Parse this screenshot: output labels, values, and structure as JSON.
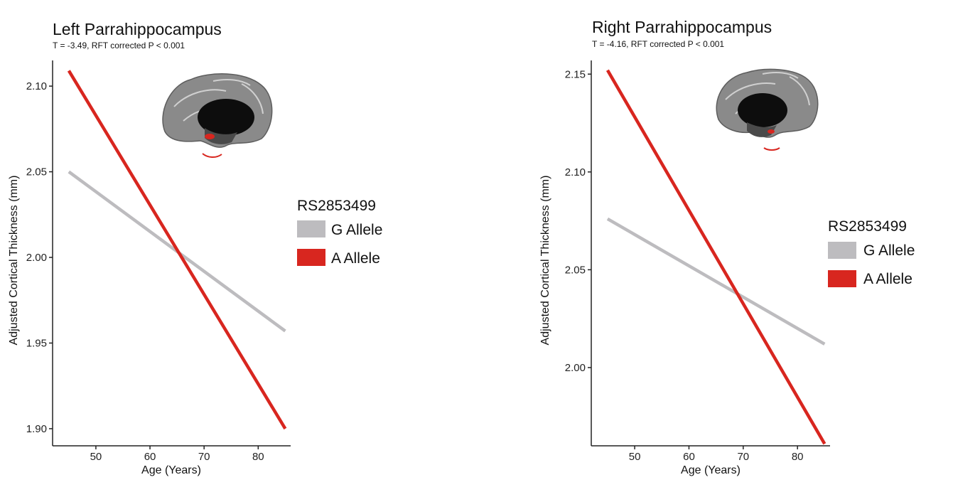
{
  "chart_data": [
    {
      "type": "line",
      "title": "Left Parrahippocampus",
      "subtitle": "T = -3.49, RFT corrected P < 0.001",
      "xlabel": "Age (Years)",
      "ylabel": "Adjusted Cortical Thickness (mm)",
      "xlim": [
        42,
        86
      ],
      "ylim": [
        1.89,
        2.115
      ],
      "xticks": [
        50,
        60,
        70,
        80
      ],
      "xtick_labels": [
        "50",
        "60",
        "70",
        "80"
      ],
      "yticks": [
        1.9,
        1.95,
        2.0,
        2.05,
        2.1
      ],
      "ytick_labels": [
        "1.90",
        "1.95",
        "2.00",
        "2.05",
        "2.10"
      ],
      "legend": {
        "title": "RS2853499",
        "placement": "right"
      },
      "series": [
        {
          "name": "G Allele",
          "color": "#bdbcbf",
          "x": [
            45,
            85
          ],
          "y": [
            2.05,
            1.957
          ]
        },
        {
          "name": "A Allele",
          "color": "#d8261f",
          "x": [
            45,
            85
          ],
          "y": [
            2.109,
            1.9
          ]
        }
      ],
      "annotation": "medial brain surface with highlighted region"
    },
    {
      "type": "line",
      "title": "Right Parrahippocampus",
      "subtitle": "T = -4.16, RFT corrected P < 0.001",
      "xlabel": "Age (Years)",
      "ylabel": "Adjusted Cortical Thickness (mm)",
      "xlim": [
        42,
        86
      ],
      "ylim": [
        1.96,
        2.157
      ],
      "xticks": [
        50,
        60,
        70,
        80
      ],
      "xtick_labels": [
        "50",
        "60",
        "70",
        "80"
      ],
      "yticks": [
        2.0,
        2.05,
        2.1,
        2.15
      ],
      "ytick_labels": [
        "2.00",
        "2.05",
        "2.10",
        "2.15"
      ],
      "legend": {
        "title": "RS2853499",
        "placement": "right"
      },
      "series": [
        {
          "name": "G Allele",
          "color": "#bdbcbf",
          "x": [
            45,
            85
          ],
          "y": [
            2.076,
            2.012
          ]
        },
        {
          "name": "A Allele",
          "color": "#d8261f",
          "x": [
            45,
            85
          ],
          "y": [
            2.152,
            1.961
          ]
        }
      ],
      "annotation": "medial brain surface with highlighted region"
    }
  ]
}
